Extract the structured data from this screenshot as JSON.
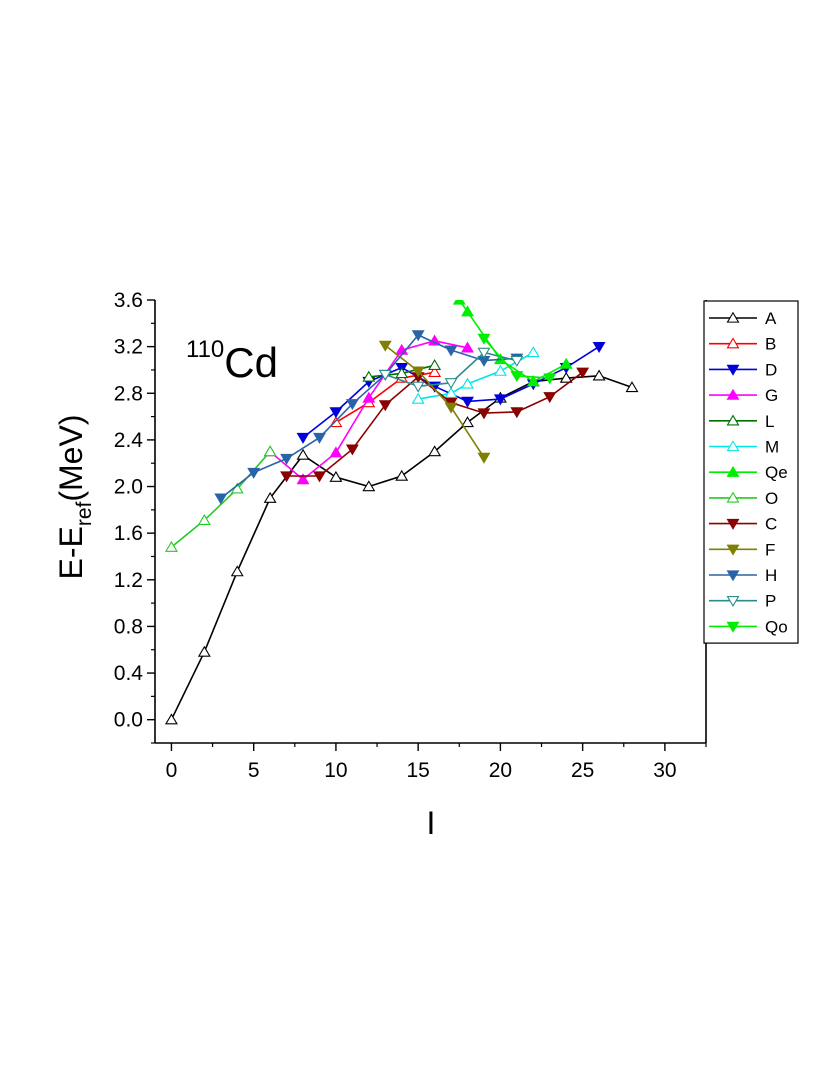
{
  "chart_data": {
    "type": "line",
    "title": "",
    "annotation": {
      "superscript": "110",
      "text": "Cd"
    },
    "xlabel": "I",
    "ylabel": {
      "main": "E-E",
      "subscript": "ref",
      "rest": "(MeV)"
    },
    "xlim": [
      -1,
      32.5
    ],
    "ylim": [
      -0.2,
      3.6
    ],
    "xticks": [
      0,
      5,
      10,
      15,
      20,
      25,
      30
    ],
    "yticks": [
      0.0,
      0.4,
      0.8,
      1.2,
      1.6,
      2.0,
      2.4,
      2.8,
      3.2,
      3.6
    ],
    "grid": false,
    "legend_position": "right",
    "series": [
      {
        "name": "A",
        "color": "#000000",
        "marker": "triangle-up",
        "filled": false,
        "x": [
          0,
          2,
          4,
          6,
          8,
          10,
          12,
          14,
          16,
          18,
          20,
          22,
          24,
          26,
          28
        ],
        "y": [
          0.0,
          0.58,
          1.27,
          1.9,
          2.27,
          2.08,
          2.0,
          2.09,
          2.3,
          2.55,
          2.76,
          2.9,
          2.93,
          2.95,
          2.85
        ]
      },
      {
        "name": "B",
        "color": "#ff0000",
        "marker": "triangle-up",
        "filled": false,
        "x": [
          10,
          12,
          14,
          16
        ],
        "y": [
          2.55,
          2.72,
          2.93,
          2.98
        ]
      },
      {
        "name": "D",
        "color": "#0000dd",
        "marker": "triangle-down",
        "filled": true,
        "x": [
          8,
          10,
          12,
          14,
          16,
          18,
          20,
          22,
          24,
          26
        ],
        "y": [
          2.42,
          2.64,
          2.9,
          3.02,
          2.86,
          2.73,
          2.75,
          2.88,
          3.02,
          3.2
        ]
      },
      {
        "name": "G",
        "color": "#ff00ff",
        "marker": "triangle-up",
        "filled": true,
        "x": [
          6,
          8,
          10,
          12,
          14,
          16,
          18
        ],
        "y": [
          2.3,
          2.06,
          2.29,
          2.76,
          3.17,
          3.25,
          3.19
        ]
      },
      {
        "name": "L",
        "color": "#007000",
        "marker": "triangle-up",
        "filled": false,
        "x": [
          12,
          14,
          16
        ],
        "y": [
          2.94,
          2.97,
          3.04
        ]
      },
      {
        "name": "M",
        "color": "#00e6e6",
        "marker": "triangle-up",
        "filled": false,
        "x": [
          15,
          17,
          18,
          20,
          22
        ],
        "y": [
          2.75,
          2.8,
          2.88,
          2.99,
          3.15
        ]
      },
      {
        "name": "Qe",
        "color": "#00ee00",
        "marker": "triangle-up",
        "filled": true,
        "x": [
          17.5,
          18,
          20,
          22,
          24
        ],
        "y": [
          3.6,
          3.5,
          3.09,
          2.9,
          3.05
        ]
      },
      {
        "name": "O",
        "color": "#22cc22",
        "marker": "triangle-up",
        "filled": false,
        "x": [
          0,
          2,
          4,
          6
        ],
        "y": [
          1.48,
          1.71,
          1.98,
          2.3
        ]
      },
      {
        "name": "C",
        "color": "#8b0000",
        "marker": "triangle-down",
        "filled": true,
        "x": [
          7,
          9,
          11,
          13,
          15,
          17,
          19,
          21,
          23,
          25
        ],
        "y": [
          2.09,
          2.09,
          2.32,
          2.7,
          2.94,
          2.72,
          2.63,
          2.64,
          2.77,
          2.98
        ]
      },
      {
        "name": "F",
        "color": "#808000",
        "marker": "triangle-down",
        "filled": true,
        "x": [
          13,
          15,
          17,
          19
        ],
        "y": [
          3.21,
          2.99,
          2.68,
          2.25
        ]
      },
      {
        "name": "H",
        "color": "#2a64a8",
        "marker": "triangle-down",
        "filled": true,
        "x": [
          3,
          5,
          7,
          9,
          11,
          13,
          15,
          17,
          19,
          21
        ],
        "y": [
          1.9,
          2.12,
          2.24,
          2.42,
          2.71,
          2.96,
          3.3,
          3.17,
          3.08,
          3.1
        ]
      },
      {
        "name": "P",
        "color": "#2e8b8b",
        "marker": "triangle-down",
        "filled": false,
        "x": [
          13,
          15,
          17,
          19,
          21
        ],
        "y": [
          2.96,
          2.86,
          2.89,
          3.15,
          3.08
        ]
      },
      {
        "name": "Qo",
        "color": "#00ee00",
        "marker": "triangle-down",
        "filled": true,
        "x": [
          19,
          21,
          23
        ],
        "y": [
          3.27,
          2.95,
          2.93
        ]
      }
    ]
  }
}
